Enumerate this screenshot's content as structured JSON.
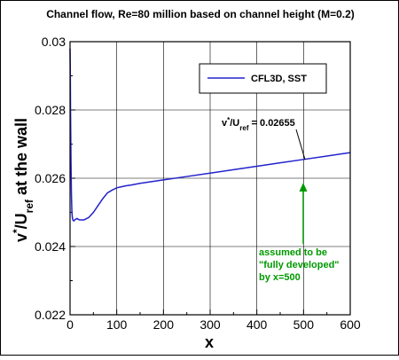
{
  "chart_data": {
    "type": "line",
    "title": "Channel flow, Re=80 million based on channel height (M=0.2)",
    "xlabel": "x",
    "ylabel": {
      "base": "v",
      "sup": "*",
      "mid": "/U",
      "sub": "ref",
      "tail": " at the wall"
    },
    "xlim": [
      0,
      600
    ],
    "ylim": [
      0.022,
      0.03
    ],
    "xticks": [
      0,
      100,
      200,
      300,
      400,
      500,
      600
    ],
    "yticks": [
      0.022,
      0.024,
      0.026,
      0.028,
      0.03
    ],
    "xtick_labels": [
      "0",
      "100",
      "200",
      "300",
      "400",
      "500",
      "600"
    ],
    "ytick_labels": [
      "0.022",
      "0.024",
      "0.026",
      "0.028",
      "0.03"
    ],
    "grid": true,
    "legend_position": "top-right",
    "series": [
      {
        "name": "CFL3D, SST",
        "color": "#2222cc",
        "x": [
          0,
          0.5,
          1,
          2,
          3,
          4,
          5,
          6,
          8,
          10,
          15,
          20,
          30,
          40,
          50,
          60,
          70,
          80,
          90,
          100,
          110,
          120,
          130,
          150,
          200,
          250,
          300,
          350,
          400,
          450,
          500,
          550,
          600
        ],
        "y": [
          0.0298,
          0.0292,
          0.028,
          0.0265,
          0.0255,
          0.025,
          0.02485,
          0.02478,
          0.02475,
          0.02478,
          0.02482,
          0.02478,
          0.02478,
          0.02485,
          0.025,
          0.0252,
          0.0254,
          0.02557,
          0.02565,
          0.02572,
          0.02575,
          0.02578,
          0.0258,
          0.02585,
          0.02595,
          0.02605,
          0.02615,
          0.02625,
          0.02635,
          0.02645,
          0.02655,
          0.02665,
          0.02675
        ]
      }
    ],
    "annotations": {
      "value_label": {
        "base": "v",
        "sup": "*",
        "mid": "/U",
        "sub": "ref",
        "tail": " = 0.02655"
      },
      "note_lines": [
        "assumed to be",
        "\"fully developed\"",
        "by x=500"
      ],
      "note_color": "#009900"
    }
  }
}
